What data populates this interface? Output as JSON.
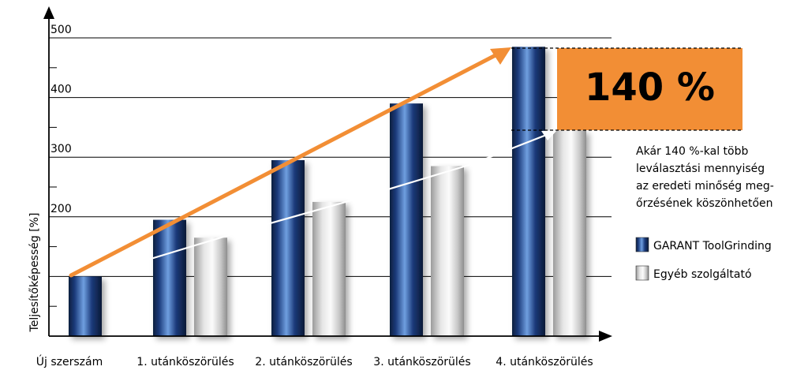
{
  "chart_data": {
    "type": "bar",
    "title": "",
    "xlabel": "",
    "ylabel": "Teljesítőképesség [%]",
    "ylim": [
      0,
      500
    ],
    "ytick_labels": [
      "200",
      "300",
      "400",
      "500"
    ],
    "categories": [
      "Új szerszám",
      "1. utánköszörülés",
      "2. utánköszörülés",
      "3. utánköszörülés",
      "4. utánköszörülés"
    ],
    "series": [
      {
        "name": "GARANT ToolGrinding",
        "values": [
          100,
          195,
          295,
          390,
          485
        ],
        "color": "#1b3a7a"
      },
      {
        "name": "Egyéb szolgáltató",
        "values": [
          null,
          165,
          225,
          285,
          345
        ],
        "color": "#b9b9b9"
      }
    ],
    "grid": true,
    "legend_position": "right",
    "highlight": {
      "label": "140 %",
      "color": "#f28e35",
      "description": [
        "Akár 140 %-kal több",
        "leválasztási mennyiség",
        "az eredeti minőség meg-",
        "őrzésének köszönhetően"
      ]
    }
  }
}
